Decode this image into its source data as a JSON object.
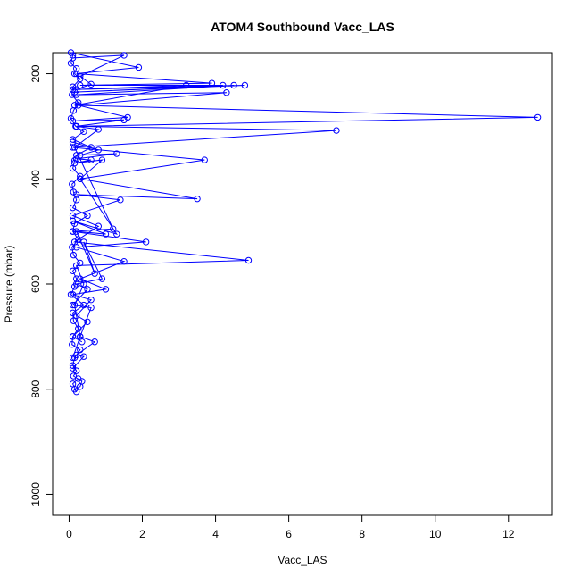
{
  "chart_data": {
    "type": "scatter",
    "title": "ATOM4 Southbound Vacc_LAS",
    "xlabel": "Vacc_LAS",
    "ylabel": "Pressure (mbar)",
    "xlim": [
      -0.45,
      13.2
    ],
    "ylim": [
      1040,
      160
    ],
    "y_reversed": true,
    "x_ticks": [
      0,
      2,
      4,
      6,
      8,
      10,
      12
    ],
    "y_ticks": [
      200,
      400,
      600,
      800,
      1000
    ],
    "colors": {
      "series": "#0000ff",
      "axis": "#000000"
    },
    "marker": "open-circle",
    "connect_points": true,
    "grid": false,
    "series": [
      {
        "x": [
          0.1,
          0.05,
          0.2,
          0.15,
          0.3,
          0.1,
          0.08,
          0.25,
          0.12,
          0.05,
          0.18,
          0.4,
          0.1,
          0.6,
          0.2,
          0.15,
          0.1,
          0.3,
          0.08,
          0.12,
          0.2,
          0.1,
          0.5,
          0.15,
          0.1,
          0.25,
          0.08,
          0.12,
          0.3,
          0.1,
          0.2,
          0.15,
          0.05,
          0.4,
          0.1,
          0.12,
          0.25,
          0.1,
          0.08,
          0.3,
          0.15,
          0.1,
          0.2,
          0.12,
          0.35,
          0.3,
          0.15,
          0.2,
          0.1,
          0.25
        ],
        "y": [
          165,
          180,
          190,
          200,
          210,
          225,
          240,
          255,
          270,
          285,
          300,
          310,
          325,
          340,
          355,
          365,
          380,
          395,
          410,
          425,
          440,
          455,
          470,
          485,
          500,
          515,
          530,
          545,
          560,
          575,
          590,
          605,
          620,
          640,
          655,
          670,
          685,
          700,
          715,
          725,
          740,
          755,
          765,
          775,
          785,
          795,
          800,
          805,
          790,
          780
        ]
      },
      {
        "x": [
          0.1,
          1.5,
          0.3,
          0.6,
          0.2,
          3.2,
          0.15,
          12.8,
          0.2,
          7.3,
          0.1,
          3.7,
          0.3,
          3.5,
          0.2,
          1.4,
          0.1,
          0.8,
          0.15,
          4.9,
          0.2,
          0.4,
          0.15,
          0.3,
          0.1
        ],
        "y": [
          170,
          165,
          205,
          220,
          230,
          222,
          260,
          283,
          300,
          308,
          340,
          364,
          400,
          438,
          430,
          440,
          470,
          490,
          520,
          555,
          565,
          600,
          640,
          700,
          740
        ]
      },
      {
        "x": [
          0.05,
          1.9,
          0.2,
          3.9,
          0.3,
          4.2,
          0.1,
          4.8,
          0.15,
          4.5,
          0.2,
          4.3,
          0.25,
          1.6,
          0.1,
          1.5,
          0.2,
          0.8,
          0.15,
          1.2,
          0.1,
          2.1,
          0.2,
          1.5,
          0.3,
          1.0,
          0.1,
          0.6,
          0.2,
          0.5,
          0.1,
          0.35
        ],
        "y": [
          160,
          188,
          200,
          218,
          222,
          222,
          230,
          222,
          235,
          222,
          240,
          236,
          260,
          283,
          290,
          288,
          300,
          306,
          340,
          495,
          500,
          520,
          530,
          557,
          590,
          610,
          620,
          630,
          660,
          672,
          700,
          710
        ]
      },
      {
        "x": [
          0.1,
          0.8,
          0.3,
          1.3,
          0.2,
          0.6,
          0.15,
          0.9,
          0.3,
          1.3,
          0.1,
          1.0,
          0.2,
          0.7,
          0.4,
          0.9,
          0.2,
          0.5,
          0.1,
          0.6,
          0.3,
          0.7,
          0.2,
          0.4,
          0.1
        ],
        "y": [
          330,
          345,
          355,
          352,
          362,
          364,
          370,
          364,
          400,
          505,
          480,
          505,
          500,
          580,
          520,
          590,
          600,
          610,
          640,
          645,
          700,
          710,
          735,
          738,
          760
        ]
      }
    ]
  }
}
